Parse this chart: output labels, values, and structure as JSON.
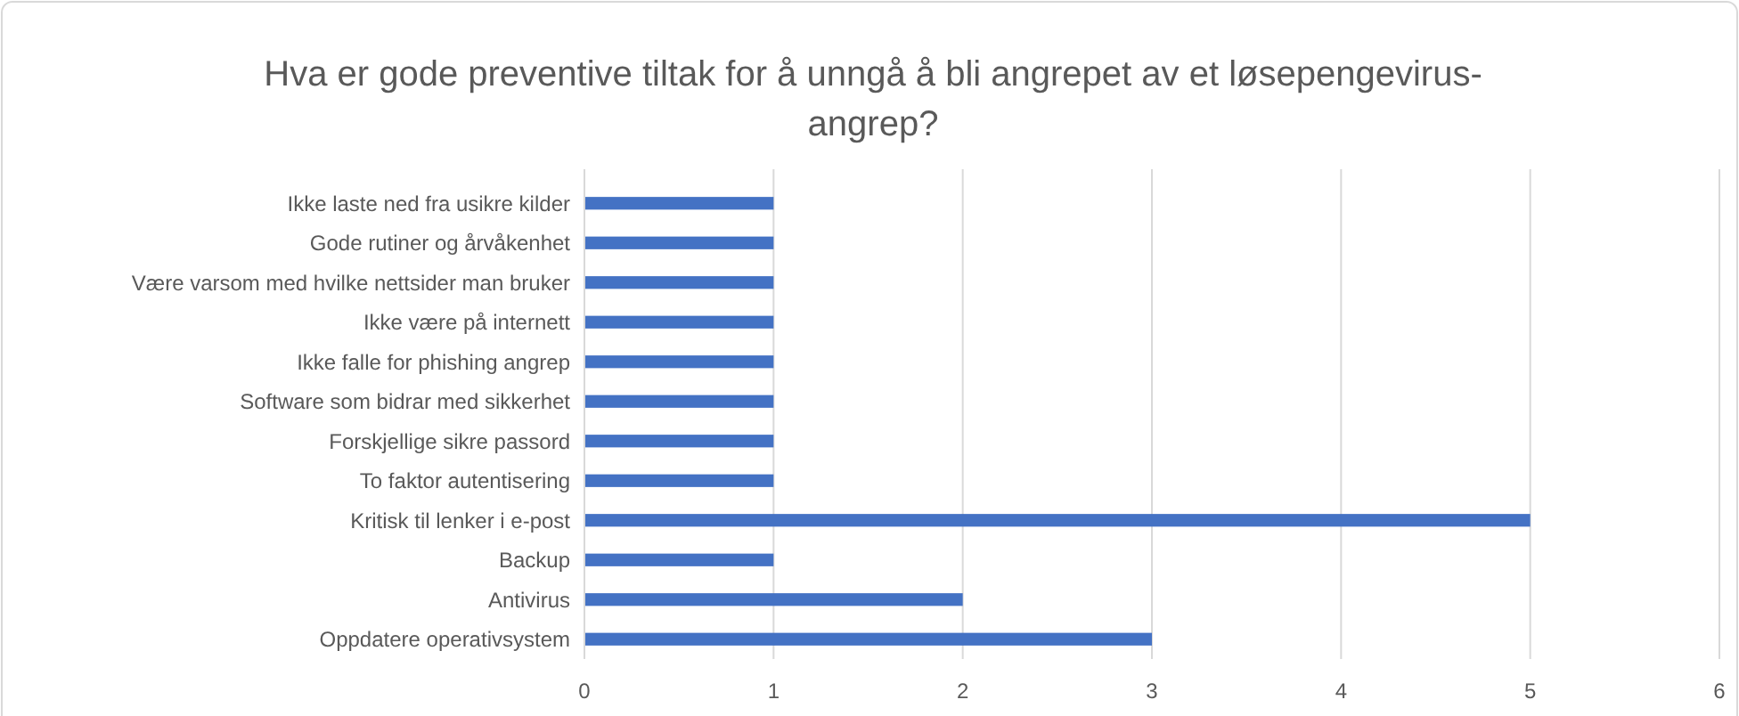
{
  "chart_data": {
    "type": "bar",
    "orientation": "horizontal",
    "title": "Hva er gode preventive tiltak for å unngå å bli angrepet av et løsepengevirus-angrep?",
    "categories": [
      "Ikke laste ned fra usikre kilder",
      "Gode rutiner og årvåkenhet",
      "Være varsom med hvilke nettsider man bruker",
      "Ikke være på internett",
      "Ikke falle for phishing angrep",
      "Software som bidrar med sikkerhet",
      "Forskjellige sikre passord",
      "To faktor autentisering",
      "Kritisk til lenker i e-post",
      "Backup",
      "Antivirus",
      "Oppdatere operativsystem"
    ],
    "values": [
      1,
      1,
      1,
      1,
      1,
      1,
      1,
      1,
      5,
      1,
      2,
      3
    ],
    "color": "#4472c4",
    "xlim": [
      0,
      6
    ],
    "xticks": [
      0,
      1,
      2,
      3,
      4,
      5,
      6
    ],
    "grid": "x"
  }
}
